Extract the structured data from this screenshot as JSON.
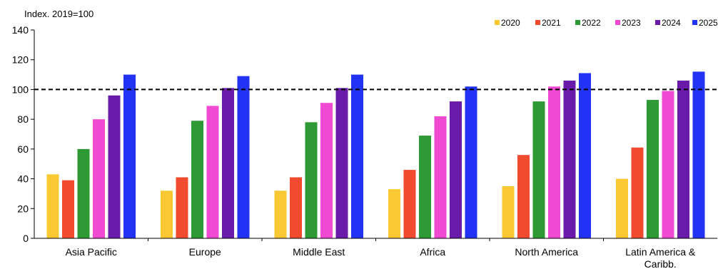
{
  "chart_data": {
    "type": "bar",
    "ylabel": "Index. 2019=100",
    "ylim": [
      0,
      140
    ],
    "yticks": [
      0,
      20,
      40,
      60,
      80,
      100,
      120,
      140
    ],
    "reference_line": 100,
    "legend_position": "top-right",
    "categories": [
      "Asia Pacific",
      "Europe",
      "Middle East",
      "Africa",
      "North America",
      "Latin America & Caribb."
    ],
    "category_label_lines": [
      [
        "Asia Pacific"
      ],
      [
        "Europe"
      ],
      [
        "Middle East"
      ],
      [
        "Africa"
      ],
      [
        "North America"
      ],
      [
        "Latin America &",
        "Caribb."
      ]
    ],
    "series": [
      {
        "name": "2020",
        "color": "#f9c832",
        "values": [
          43,
          32,
          32,
          33,
          35,
          40
        ]
      },
      {
        "name": "2021",
        "color": "#f04a2f",
        "values": [
          39,
          41,
          41,
          46,
          56,
          61
        ]
      },
      {
        "name": "2022",
        "color": "#2e9a35",
        "values": [
          60,
          79,
          78,
          69,
          92,
          93
        ]
      },
      {
        "name": "2023",
        "color": "#f04ad2",
        "values": [
          80,
          89,
          91,
          82,
          102,
          99
        ]
      },
      {
        "name": "2024",
        "color": "#6a1aa8",
        "values": [
          96,
          101,
          101,
          92,
          106,
          106
        ]
      },
      {
        "name": "2025",
        "color": "#2233f5",
        "values": [
          110,
          109,
          110,
          102,
          111,
          112
        ]
      }
    ]
  }
}
